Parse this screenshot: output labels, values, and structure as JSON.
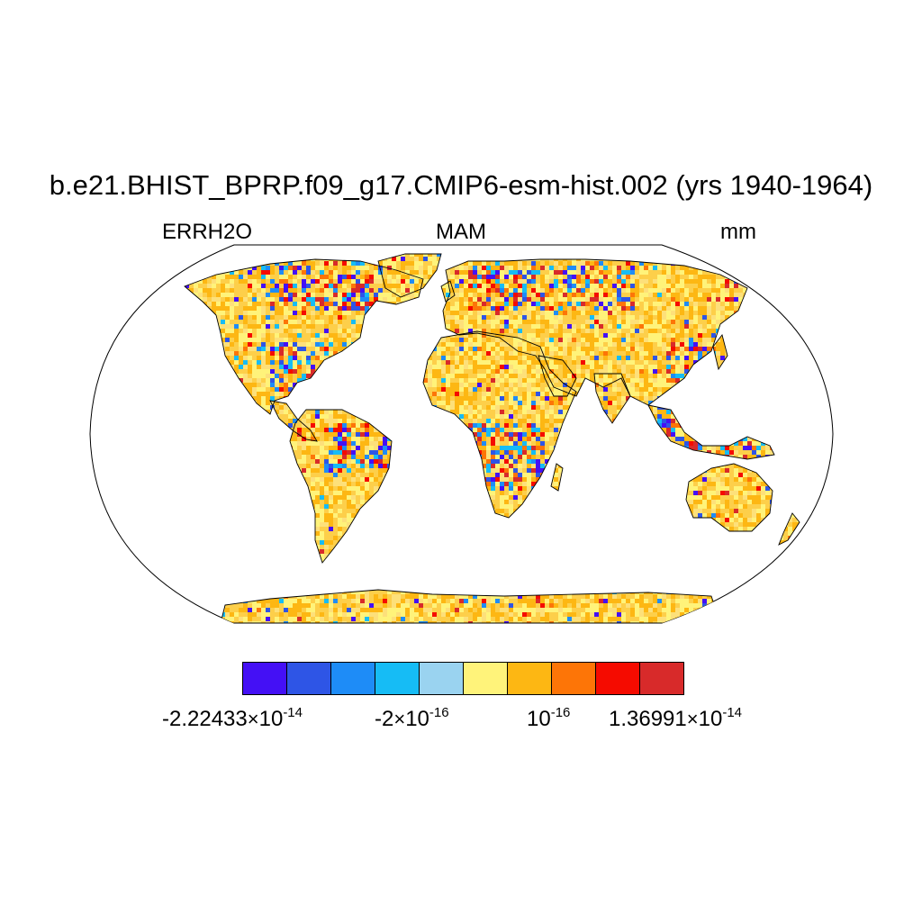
{
  "title": "b.e21.BHIST_BPRP.f09_g17.CMIP6-esm-hist.002 (yrs 1940-1964)",
  "variable": "ERRH2O",
  "season": "MAM",
  "units": "mm",
  "projection": "Robinson",
  "colorbar": {
    "colors": [
      "#4410f5",
      "#2e55e6",
      "#1e8cf7",
      "#16bcf5",
      "#9ad3f0",
      "#fff37a",
      "#fdb713",
      "#fd7507",
      "#f50b00",
      "#d82a2a"
    ],
    "labels": [
      {
        "mantissa": "-2.22433",
        "exponent": "-14"
      },
      {
        "mantissa": "-2",
        "exponent": "-16"
      },
      {
        "mantissa": "",
        "exponent": "-16"
      },
      {
        "mantissa": "1.36991",
        "exponent": "-14"
      }
    ]
  },
  "map_fill_note_colors": {
    "dominant_land": "#fdcf4a",
    "ocean": "#ffffff",
    "coast": "#000000"
  }
}
